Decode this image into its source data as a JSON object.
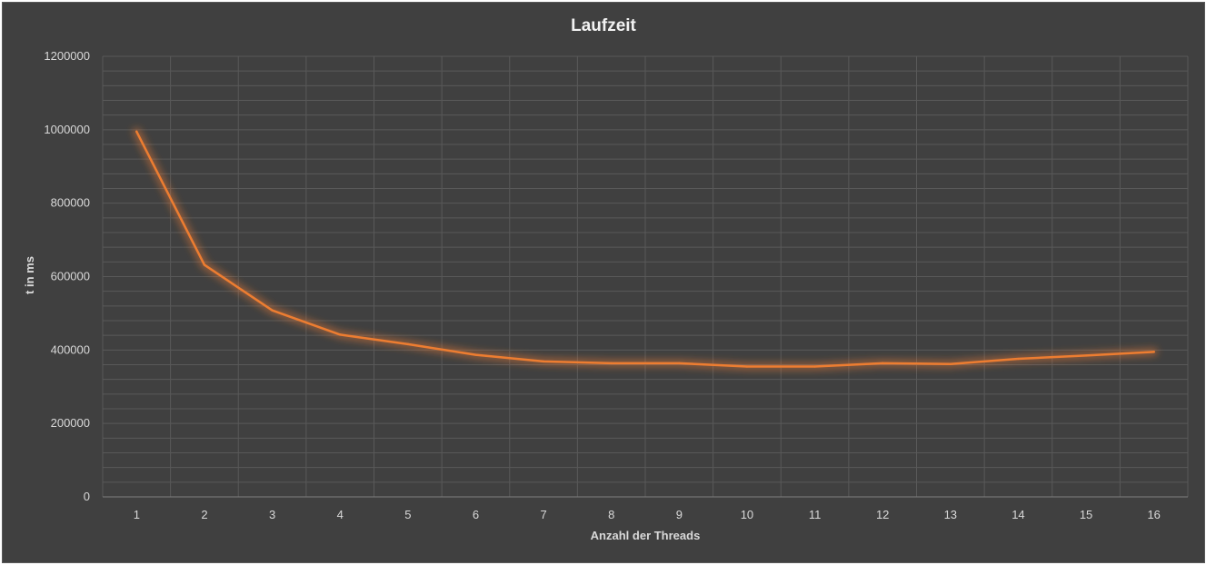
{
  "chart_data": {
    "type": "line",
    "title": "Laufzeit",
    "xlabel": "Anzahl der Threads",
    "ylabel": "t in ms",
    "categories": [
      "1",
      "2",
      "3",
      "4",
      "5",
      "6",
      "7",
      "8",
      "9",
      "10",
      "11",
      "12",
      "13",
      "14",
      "15",
      "16"
    ],
    "series": [
      {
        "values": [
          995000,
          632000,
          508000,
          442000,
          416000,
          387000,
          369000,
          364000,
          364000,
          355000,
          355000,
          364000,
          362000,
          376000,
          385000,
          395000
        ]
      }
    ],
    "ylim": [
      0,
      1200000
    ],
    "y_ticks": [
      "0",
      "200000",
      "400000",
      "600000",
      "800000",
      "1000000",
      "1200000"
    ],
    "grid": true,
    "legend": "none",
    "colors": {
      "background": "#404040",
      "border": "#595959",
      "gridline": "#595959",
      "line": "#ED7D31",
      "glow": "#ED7D31",
      "text": "#d9d9d9",
      "title": "#f2f2f2"
    }
  }
}
